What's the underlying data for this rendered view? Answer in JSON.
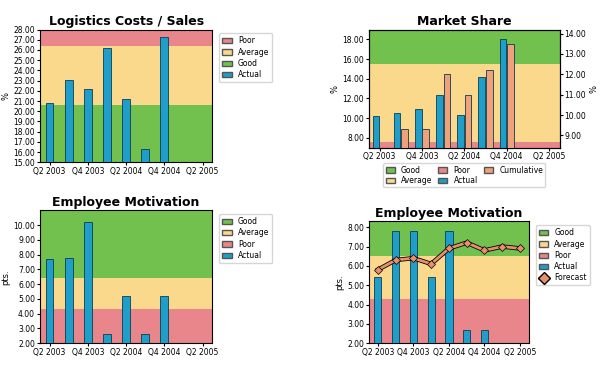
{
  "chart_data": [
    {
      "type": "bar",
      "title": "Logistics Costs / Sales",
      "y_label": "%",
      "categories": [
        "Q2 2003",
        null,
        "Q4 2003",
        null,
        "Q2 2004",
        null,
        "Q4 2004",
        null,
        "Q2 2005"
      ],
      "bands": [
        {
          "name": "Poor",
          "color": "#e8868c",
          "from": 26.4,
          "to": 28
        },
        {
          "name": "Average",
          "color": "#fbd98c",
          "from": 20.6,
          "to": 26.4
        },
        {
          "name": "Good",
          "color": "#72c04e",
          "from": 15,
          "to": 20.6
        }
      ],
      "series": [
        {
          "name": "Actual",
          "type": "bar",
          "color": "#1e9ec8",
          "values": [
            20.8,
            23.1,
            22.2,
            26.2,
            21.2,
            16.3,
            27.3,
            null,
            null
          ]
        }
      ],
      "ylim": [
        15,
        28
      ],
      "yticks": [
        {
          "value": 15,
          "label": "15.00"
        },
        {
          "value": 16,
          "label": "16.00"
        },
        {
          "value": 17,
          "label": "17.00"
        },
        {
          "value": 18,
          "label": "18.00"
        },
        {
          "value": 19,
          "label": "19.00"
        },
        {
          "value": 20,
          "label": "20.00"
        },
        {
          "value": 21,
          "label": "21.00"
        },
        {
          "value": 22,
          "label": "22.00"
        },
        {
          "value": 23,
          "label": "23.00"
        },
        {
          "value": 24,
          "label": "24.00"
        },
        {
          "value": 25,
          "label": "25.00"
        },
        {
          "value": 26,
          "label": "26.00"
        },
        {
          "value": 27,
          "label": "27.00"
        },
        {
          "value": 28,
          "label": "28.00"
        }
      ],
      "grid": false,
      "legend": "right"
    },
    {
      "type": "bar",
      "title": "Market Share",
      "y_label": "%",
      "y2_label": "%",
      "categories": [
        "Q2 2003",
        null,
        "Q4 2003",
        null,
        "Q2 2004",
        null,
        "Q4 2004",
        null,
        "Q2 2005"
      ],
      "bands": [
        {
          "name": "Good",
          "color": "#72c04e",
          "from": 15.5,
          "to": 19
        },
        {
          "name": "Average",
          "color": "#fbd98c",
          "from": 7.6,
          "to": 15.5
        },
        {
          "name": "Poor",
          "color": "#e8868c",
          "from": 7,
          "to": 7.6
        }
      ],
      "series": [
        {
          "name": "Actual",
          "type": "bar",
          "color": "#1e9ec8",
          "values": [
            10.2,
            10.5,
            10.9,
            12.3,
            10.3,
            14.2,
            18.0,
            null,
            null
          ]
        },
        {
          "name": "Cumulative",
          "type": "bar",
          "color": "#f0a07a",
          "axis": "y2",
          "values": [
            null,
            9.3,
            9.3,
            12.0,
            11.0,
            12.2,
            13.5,
            null,
            null
          ]
        }
      ],
      "ylim": [
        7,
        19
      ],
      "yticks": [
        {
          "value": 8,
          "label": "8.00"
        },
        {
          "value": 10,
          "label": "10.00"
        },
        {
          "value": 12,
          "label": "12.00"
        },
        {
          "value": 14,
          "label": "14.00"
        },
        {
          "value": 16,
          "label": "16.00"
        },
        {
          "value": 18,
          "label": "18.00"
        }
      ],
      "y2lim": [
        8.4,
        14.2
      ],
      "y2ticks": [
        {
          "value": 9,
          "label": "9.00"
        },
        {
          "value": 10,
          "label": "10.00"
        },
        {
          "value": 11,
          "label": "11.00"
        },
        {
          "value": 12,
          "label": "12.00"
        },
        {
          "value": 13,
          "label": "13.00"
        },
        {
          "value": 14,
          "label": "14.00"
        }
      ],
      "grid": false,
      "legend": "bottom"
    },
    {
      "type": "bar",
      "title": "Employee Motivation",
      "y_label": "pts.",
      "categories": [
        "Q2 2003",
        null,
        "Q4 2003",
        null,
        "Q2 2004",
        null,
        "Q4 2004",
        null,
        "Q2 2005"
      ],
      "bands": [
        {
          "name": "Good",
          "color": "#72c04e",
          "from": 6.4,
          "to": 11
        },
        {
          "name": "Average",
          "color": "#fbd98c",
          "from": 4.3,
          "to": 6.4
        },
        {
          "name": "Poor",
          "color": "#e8868c",
          "from": 2,
          "to": 4.3
        }
      ],
      "series": [
        {
          "name": "Actual",
          "type": "bar",
          "color": "#1e9ec8",
          "values": [
            7.7,
            7.8,
            10.2,
            2.6,
            5.2,
            2.6,
            5.2,
            null,
            null
          ]
        }
      ],
      "ylim": [
        2,
        11
      ],
      "yticks": [
        {
          "value": 2,
          "label": "2.00"
        },
        {
          "value": 3,
          "label": "3.00"
        },
        {
          "value": 4,
          "label": "4.00"
        },
        {
          "value": 5,
          "label": "5.00"
        },
        {
          "value": 6,
          "label": "6.00"
        },
        {
          "value": 7,
          "label": "7.00"
        },
        {
          "value": 8,
          "label": "8.00"
        },
        {
          "value": 9,
          "label": "9.00"
        },
        {
          "value": 10,
          "label": "10.00"
        }
      ],
      "grid": false,
      "legend": "right"
    },
    {
      "type": "bar",
      "title": "Employee Motivation",
      "y_label": "pts.",
      "categories": [
        "Q2 2003",
        null,
        "Q4 2003",
        null,
        "Q2 2004",
        null,
        "Q4 2004",
        null,
        "Q2 2005"
      ],
      "bands": [
        {
          "name": "Good",
          "color": "#72c04e",
          "from": 6.5,
          "to": 8.3
        },
        {
          "name": "Average",
          "color": "#fbd98c",
          "from": 4.3,
          "to": 6.5
        },
        {
          "name": "Poor",
          "color": "#e8868c",
          "from": 2,
          "to": 4.3
        }
      ],
      "series": [
        {
          "name": "Actual",
          "type": "bar",
          "color": "#1e9ec8",
          "values": [
            5.4,
            7.8,
            7.8,
            5.4,
            7.8,
            2.7,
            2.7,
            null,
            null
          ]
        },
        {
          "name": "Forecast",
          "type": "line",
          "color": "#e8906c",
          "marker": "diamond",
          "values": [
            5.8,
            6.3,
            6.4,
            6.1,
            6.9,
            7.2,
            6.8,
            7.0,
            6.9
          ]
        }
      ],
      "ylim": [
        2,
        8.3
      ],
      "yticks": [
        {
          "value": 2,
          "label": "2.00"
        },
        {
          "value": 3,
          "label": "3.00"
        },
        {
          "value": 4,
          "label": "4.00"
        },
        {
          "value": 5,
          "label": "5.00"
        },
        {
          "value": 6,
          "label": "6.00"
        },
        {
          "value": 7,
          "label": "7.00"
        },
        {
          "value": 8,
          "label": "8.00"
        }
      ],
      "grid": false,
      "legend": "right"
    }
  ]
}
